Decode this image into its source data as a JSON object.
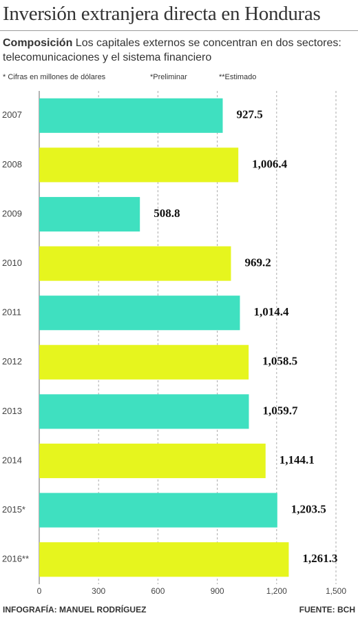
{
  "chart_data": {
    "type": "bar",
    "orientation": "horizontal",
    "title": "Inversión extranjera directa en Honduras",
    "subtitle_label": "Composición",
    "subtitle": "Los capitales externos se concentran en dos sectores: telecomunicaciones y el sistema financiero",
    "notes": [
      "* Cifras en millones de dólares",
      "*Preliminar",
      "**Estimado"
    ],
    "categories": [
      "2007",
      "2008",
      "2009",
      "2010",
      "2011",
      "2012",
      "2013",
      "2014",
      "2015*",
      "2016**"
    ],
    "values": [
      927.5,
      1006.4,
      508.8,
      969.2,
      1014.4,
      1058.5,
      1059.7,
      1144.1,
      1203.5,
      1261.3
    ],
    "value_labels": [
      "927.5",
      "1,006.4",
      "508.8",
      "969.2",
      "1,014.4",
      "1,058.5",
      "1,059.7",
      "1,144.1",
      "1,203.5",
      "1,261.3"
    ],
    "colors": [
      "#3fe0c0",
      "#e6f51e",
      "#3fe0c0",
      "#e6f51e",
      "#3fe0c0",
      "#e6f51e",
      "#3fe0c0",
      "#e6f51e",
      "#3fe0c0",
      "#e6f51e"
    ],
    "xlim": [
      0,
      1500
    ],
    "xticks": [
      0,
      300,
      600,
      900,
      {
        "value": 1200,
        "label": "1,200"
      },
      {
        "value": 1500,
        "label": "1,500"
      }
    ],
    "grid": true,
    "credit": "INFOGRAFÍA: MANUEL RODRÍGUEZ",
    "source": "FUENTE: BCH"
  }
}
